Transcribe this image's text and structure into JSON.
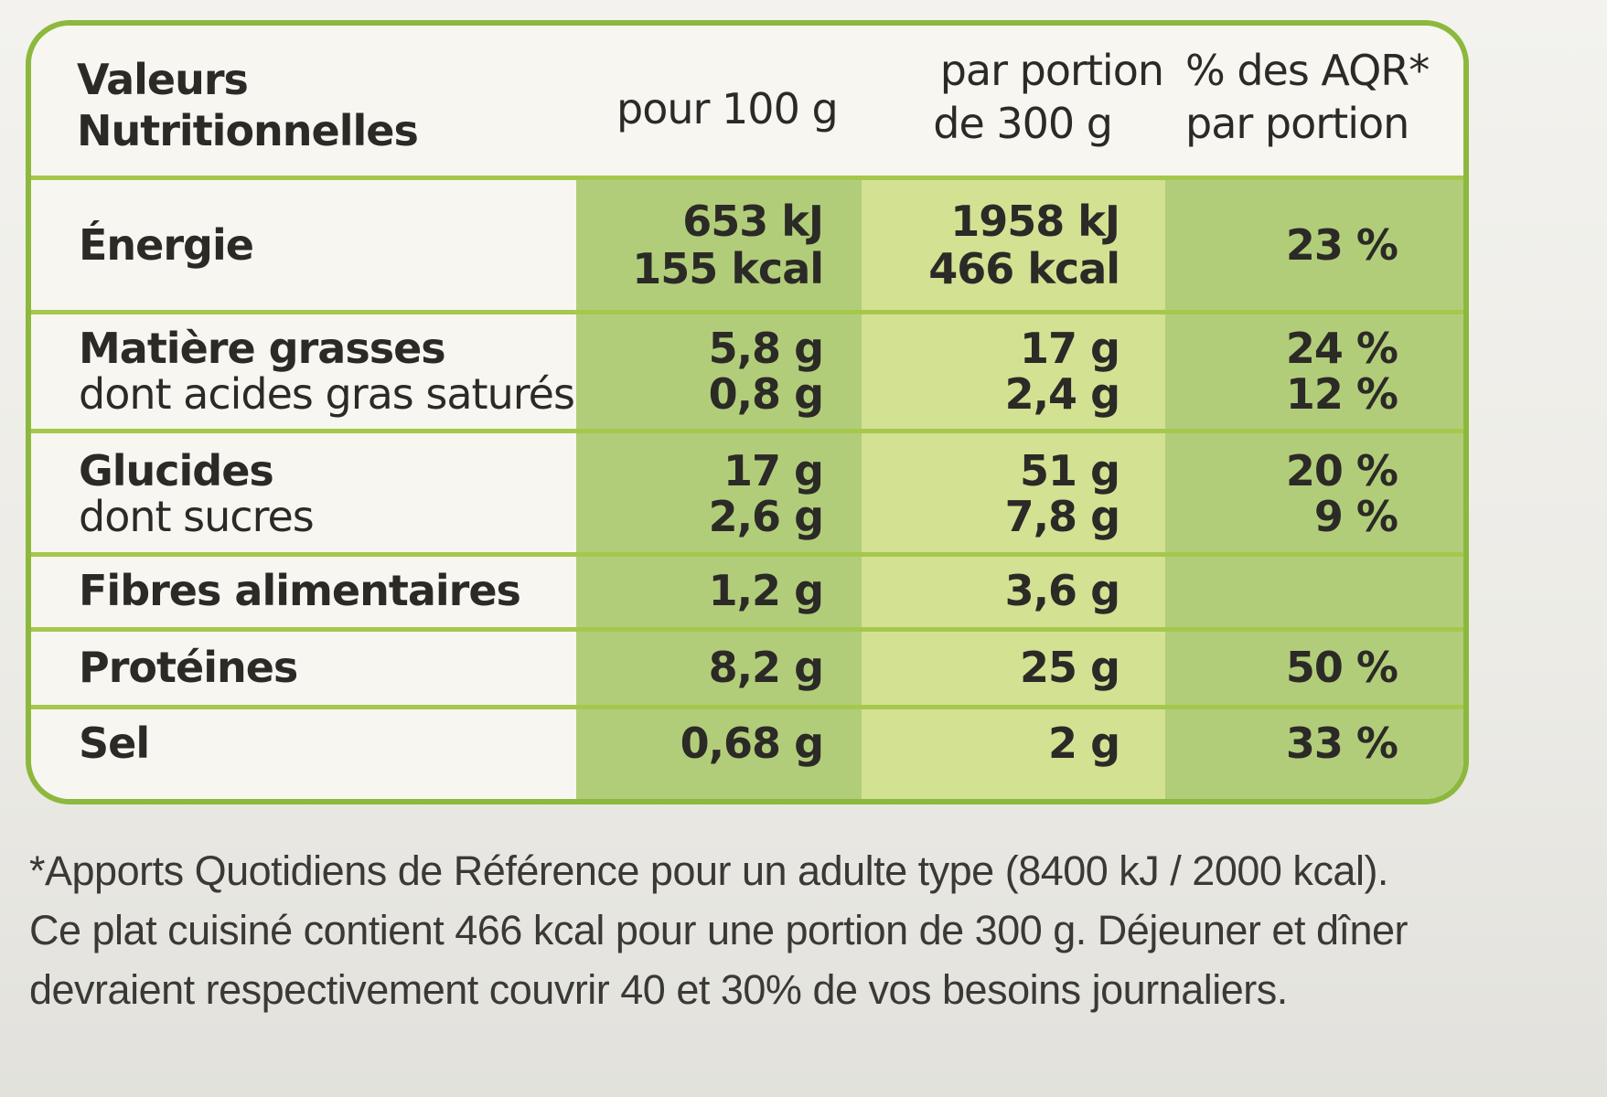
{
  "header": {
    "col0_line1": "Valeurs",
    "col0_line2": "Nutritionnelles",
    "col1": "pour 100 g",
    "col2_line1": "par portion",
    "col2_line2": "de 300 g",
    "col3_line1": "% des AQR*",
    "col3_line2": "par portion"
  },
  "rows": [
    {
      "label": "Énergie",
      "per100_l1": "653 kJ",
      "per100_l2": "155 kcal",
      "portion_l1": "1958 kJ",
      "portion_l2": "466 kcal",
      "aqr": "23 %"
    },
    {
      "label": "Matière grasses",
      "sublabel": "dont acides gras saturés",
      "per100_l1": "5,8 g",
      "per100_l2": "0,8 g",
      "portion_l1": "17 g",
      "portion_l2": "2,4 g",
      "aqr_l1": "24 %",
      "aqr_l2": "12 %"
    },
    {
      "label": "Glucides",
      "sublabel": "dont sucres",
      "per100_l1": "17 g",
      "per100_l2": "2,6 g",
      "portion_l1": "51 g",
      "portion_l2": "7,8 g",
      "aqr_l1": "20 %",
      "aqr_l2": "9 %"
    },
    {
      "label": "Fibres alimentaires",
      "per100": "1,2 g",
      "portion": "3,6 g",
      "aqr": ""
    },
    {
      "label": "Protéines",
      "per100": "8,2 g",
      "portion": "25 g",
      "aqr": "50 %"
    },
    {
      "label": "Sel",
      "per100": "0,68 g",
      "portion": "2 g",
      "aqr": "33 %"
    }
  ],
  "footnote": {
    "line1": "*Apports Quotidiens de Référence pour un adulte type (8400 kJ / 2000 kcal).",
    "line2": "Ce plat cuisiné contient 466 kcal pour une portion de 300 g. Déjeuner et dîner",
    "line3": "devraient respectivement couvrir 40 et 30% de vos besoins journaliers."
  },
  "colors": {
    "border_green": "#8cb83e",
    "cell_green": "#b2cd7a",
    "cell_yellow_green": "#d3e193"
  }
}
